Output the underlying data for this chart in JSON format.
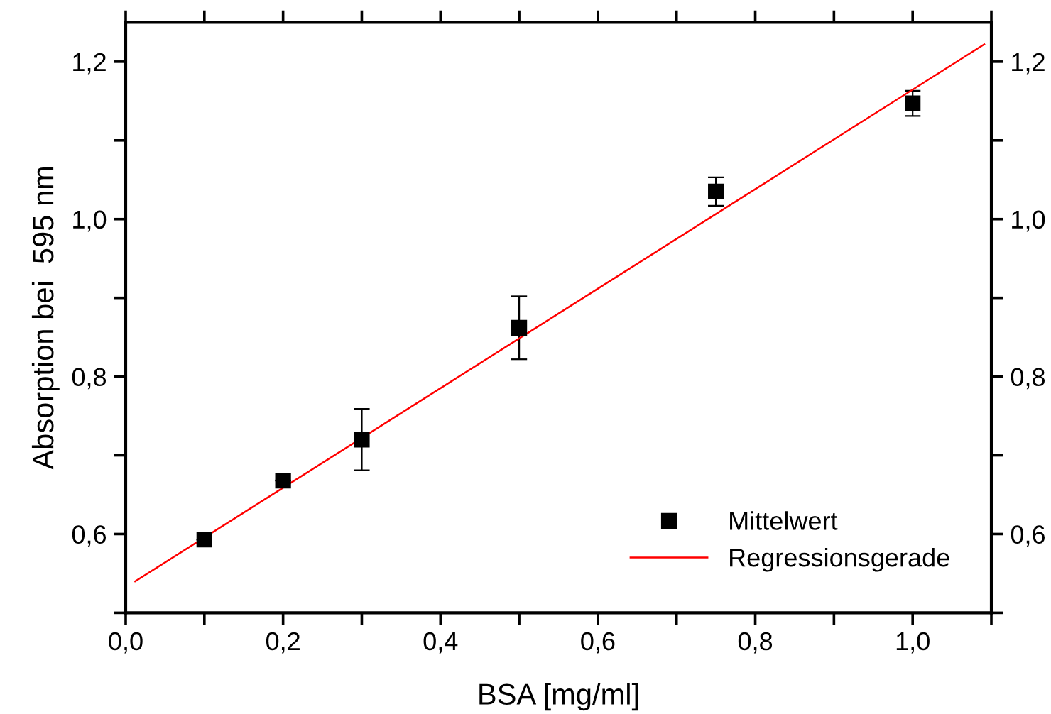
{
  "chart_data": {
    "type": "scatter",
    "xlabel": "BSA [mg/ml]",
    "ylabel": "Absorption bei  595 nm",
    "xlim": [
      0,
      1.1
    ],
    "ylim": [
      0.5,
      1.25
    ],
    "y2lim": [
      0.5,
      1.25
    ],
    "xticks": [
      {
        "value": 0,
        "label": "0,0"
      },
      {
        "value": 0.1,
        "label": null
      },
      {
        "value": 0.2,
        "label": "0,2"
      },
      {
        "value": 0.3,
        "label": null
      },
      {
        "value": 0.4,
        "label": "0,4"
      },
      {
        "value": 0.5,
        "label": null
      },
      {
        "value": 0.6,
        "label": "0,6"
      },
      {
        "value": 0.7,
        "label": null
      },
      {
        "value": 0.8,
        "label": "0,8"
      },
      {
        "value": 0.9,
        "label": null
      },
      {
        "value": 1.0,
        "label": "1,0"
      },
      {
        "value": 1.1,
        "label": null
      }
    ],
    "yticks": [
      {
        "value": 0.5,
        "label": null
      },
      {
        "value": 0.6,
        "label": "0,6"
      },
      {
        "value": 0.7,
        "label": null
      },
      {
        "value": 0.8,
        "label": "0,8"
      },
      {
        "value": 0.9,
        "label": null
      },
      {
        "value": 1.0,
        "label": "1,0"
      },
      {
        "value": 1.1,
        "label": null
      },
      {
        "value": 1.2,
        "label": "1,2"
      }
    ],
    "y2ticks": [
      {
        "value": 0.5,
        "label": null
      },
      {
        "value": 0.6,
        "label": "0,6"
      },
      {
        "value": 0.7,
        "label": null
      },
      {
        "value": 0.8,
        "label": "0,8"
      },
      {
        "value": 0.9,
        "label": null
      },
      {
        "value": 1.0,
        "label": "1,0"
      },
      {
        "value": 1.1,
        "label": null
      },
      {
        "value": 1.2,
        "label": "1,2"
      }
    ],
    "grid": false,
    "legend": "bottom right",
    "series": [
      {
        "name": "Mittelwert",
        "marker": "square",
        "color": "#000000",
        "x": [
          0.1,
          0.2,
          0.3,
          0.5,
          0.75,
          1.0
        ],
        "values": [
          0.593,
          0.668,
          0.72,
          0.862,
          1.035,
          1.147
        ],
        "errors": [
          null,
          null,
          0.039,
          0.04,
          0.018,
          0.016
        ]
      },
      {
        "name": "Regressionsgerade",
        "type": "line",
        "color": "#ff0000",
        "x": [
          0.012,
          1.091
        ],
        "values": [
          0.54,
          1.222
        ]
      }
    ]
  }
}
